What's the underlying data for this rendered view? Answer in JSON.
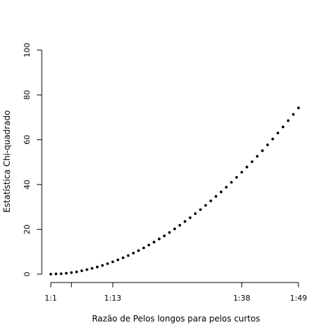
{
  "chart_data": {
    "type": "scatter",
    "title": "",
    "xlabel": "Razão de Pelos longos para pelos curtos",
    "ylabel": "Estatística Chi-quadrado",
    "y_axis": {
      "range": [
        0,
        100
      ],
      "ticks": [
        0,
        20,
        40,
        60,
        80,
        100
      ],
      "tick_labels": [
        "0",
        "20",
        "40",
        "60",
        "80",
        "100"
      ]
    },
    "x_axis": {
      "range": [
        1,
        49
      ],
      "scale": "ratio 1:k",
      "ticks": [
        1,
        5,
        13,
        38,
        49
      ],
      "tick_labels": [
        "1:1",
        "",
        "1:13",
        "1:38",
        "1:49"
      ]
    },
    "grid": false,
    "legend": "none",
    "marker_color": "#000000",
    "points_x": [
      1,
      2,
      3,
      4,
      5,
      6,
      7,
      8,
      9,
      10,
      11,
      12,
      13,
      14,
      15,
      16,
      17,
      18,
      19,
      20,
      21,
      22,
      23,
      24,
      25,
      26,
      27,
      28,
      29,
      30,
      31,
      32,
      33,
      34,
      35,
      36,
      37,
      38,
      39,
      40,
      41,
      42,
      43,
      44,
      45,
      46,
      47,
      48,
      49
    ],
    "points_y": [
      0.0,
      0.1,
      0.2,
      0.4,
      0.7,
      1.0,
      1.5,
      2.0,
      2.6,
      3.2,
      3.9,
      4.7,
      5.5,
      6.4,
      7.3,
      8.3,
      9.4,
      10.5,
      11.7,
      13.0,
      14.3,
      15.7,
      17.1,
      18.6,
      20.2,
      21.8,
      23.5,
      25.2,
      27.0,
      28.8,
      30.7,
      32.7,
      34.7,
      36.7,
      38.8,
      41.0,
      43.2,
      45.5,
      47.8,
      50.2,
      52.6,
      55.1,
      57.7,
      60.3,
      63.0,
      65.7,
      68.5,
      71.3,
      74.2
    ]
  }
}
